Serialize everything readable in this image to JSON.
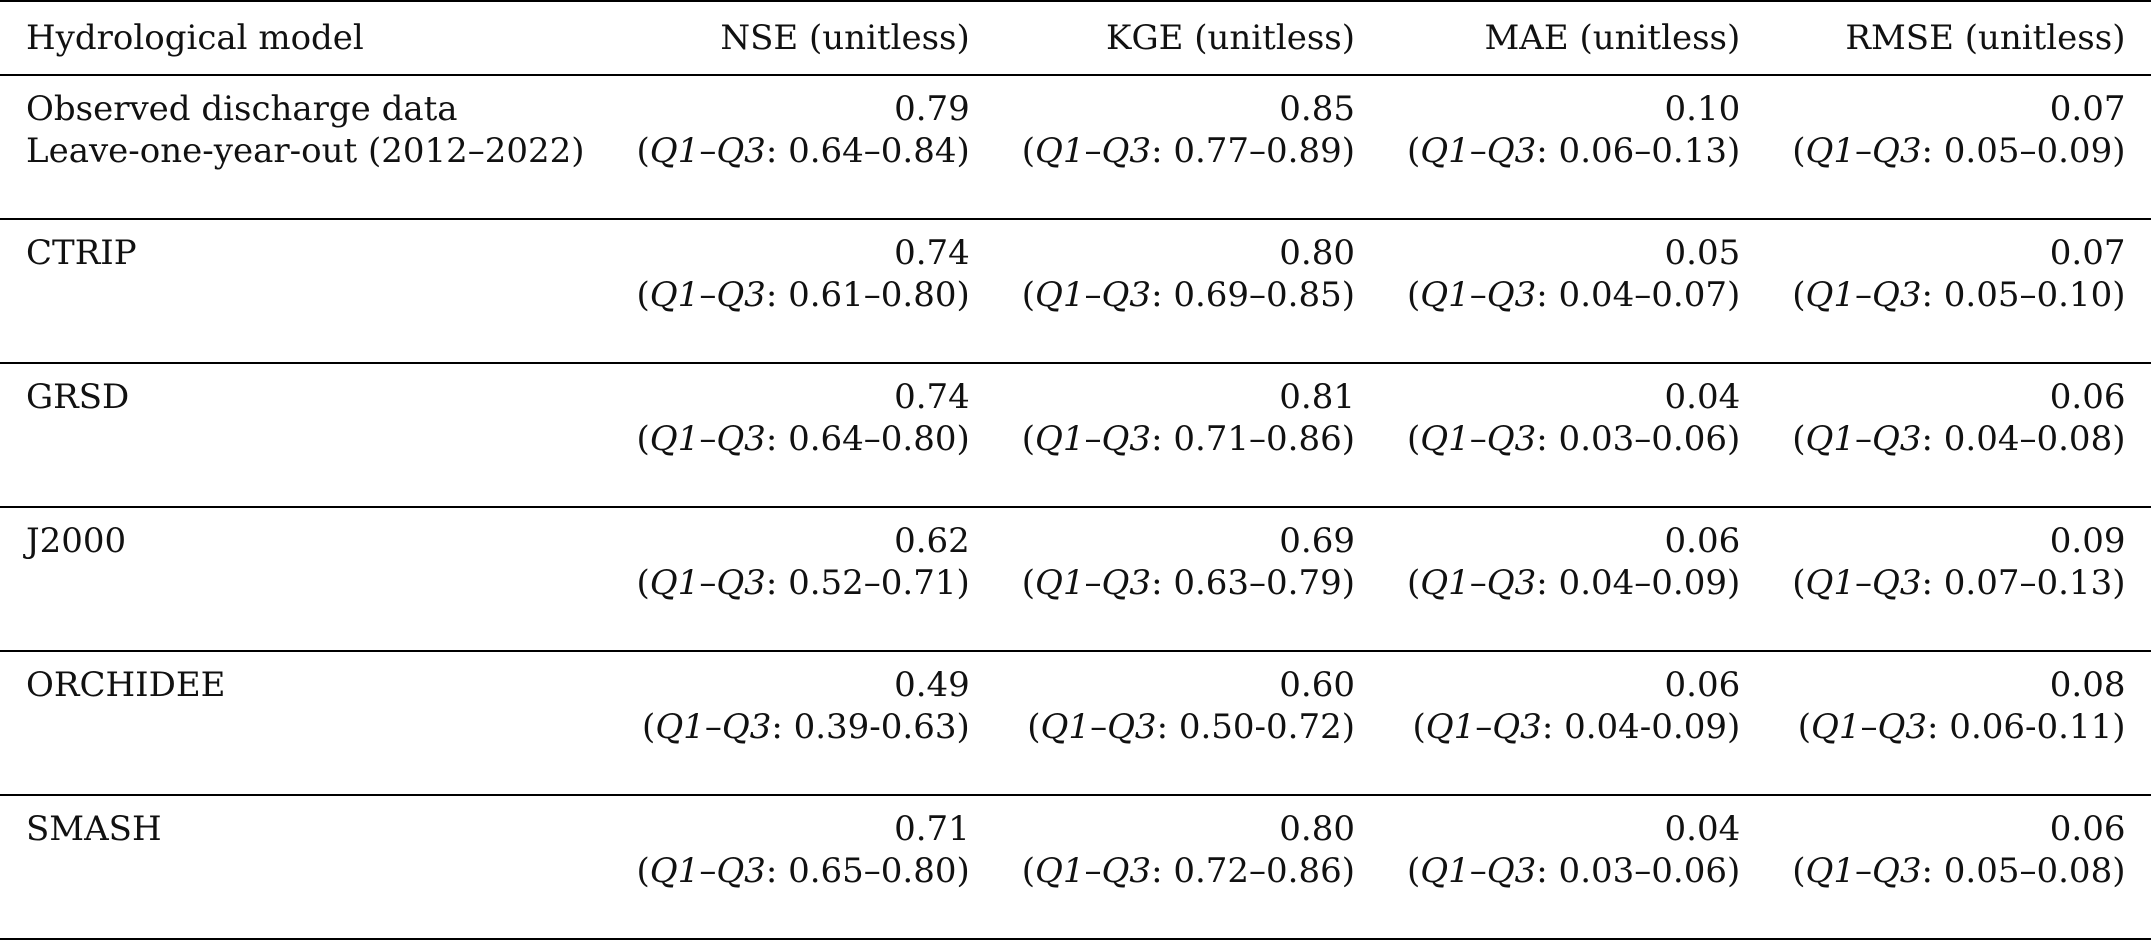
{
  "table": {
    "headers": [
      "Hydrological model",
      "NSE (unitless)",
      "KGE (unitless)",
      "MAE (unitless)",
      "RMSE (unitless)"
    ],
    "rows": [
      {
        "model": [
          "Observed discharge data",
          "Leave-one-year-out (2012–2022)"
        ],
        "cells": [
          {
            "value": "0.79",
            "range": ": 0.64–0.84)"
          },
          {
            "value": "0.85",
            "range": ": 0.77–0.89)"
          },
          {
            "value": "0.10",
            "range": ": 0.06–0.13)"
          },
          {
            "value": "0.07",
            "range": ": 0.05–0.09)"
          }
        ]
      },
      {
        "model": [
          "CTRIP",
          ""
        ],
        "cells": [
          {
            "value": "0.74",
            "range": ": 0.61–0.80)"
          },
          {
            "value": "0.80",
            "range": ": 0.69–0.85)"
          },
          {
            "value": "0.05",
            "range": ": 0.04–0.07)"
          },
          {
            "value": "0.07",
            "range": ": 0.05–0.10)"
          }
        ]
      },
      {
        "model": [
          "GRSD",
          ""
        ],
        "cells": [
          {
            "value": "0.74",
            "range": ": 0.64–0.80)"
          },
          {
            "value": "0.81",
            "range": ": 0.71–0.86)"
          },
          {
            "value": "0.04",
            "range": ": 0.03–0.06)"
          },
          {
            "value": "0.06",
            "range": ": 0.04–0.08)"
          }
        ]
      },
      {
        "model": [
          "J2000",
          ""
        ],
        "cells": [
          {
            "value": "0.62",
            "range": ": 0.52–0.71)"
          },
          {
            "value": "0.69",
            "range": ": 0.63–0.79)"
          },
          {
            "value": "0.06",
            "range": ": 0.04–0.09)"
          },
          {
            "value": "0.09",
            "range": ": 0.07–0.13)"
          }
        ]
      },
      {
        "model": [
          "ORCHIDEE",
          ""
        ],
        "cells": [
          {
            "value": "0.49",
            "range": ": 0.39-0.63)"
          },
          {
            "value": "0.60",
            "range": ": 0.50-0.72)"
          },
          {
            "value": "0.06",
            "range": ": 0.04-0.09)"
          },
          {
            "value": "0.08",
            "range": ": 0.06-0.11)"
          }
        ]
      },
      {
        "model": [
          "SMASH",
          ""
        ],
        "cells": [
          {
            "value": "0.71",
            "range": ": 0.65–0.80)"
          },
          {
            "value": "0.80",
            "range": ": 0.72–0.86)"
          },
          {
            "value": "0.04",
            "range": ": 0.03–0.06)"
          },
          {
            "value": "0.06",
            "range": ": 0.05–0.08)"
          }
        ]
      }
    ],
    "quartile_prefix": "(",
    "q1": "Q1",
    "dash": "–",
    "q3": "Q3"
  }
}
